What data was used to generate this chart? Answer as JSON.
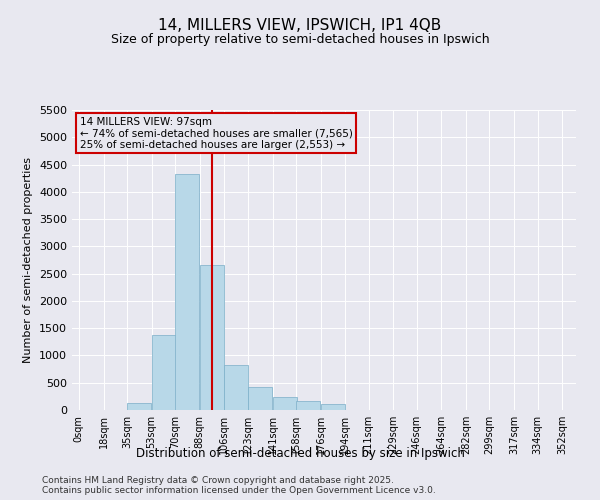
{
  "title": "14, MILLERS VIEW, IPSWICH, IP1 4QB",
  "subtitle": "Size of property relative to semi-detached houses in Ipswich",
  "xlabel": "Distribution of semi-detached houses by size in Ipswich",
  "ylabel": "Number of semi-detached properties",
  "footer_line1": "Contains HM Land Registry data © Crown copyright and database right 2025.",
  "footer_line2": "Contains public sector information licensed under the Open Government Licence v3.0.",
  "property_size": 97,
  "annotation_title": "14 MILLERS VIEW: 97sqm",
  "annotation_line1": "← 74% of semi-detached houses are smaller (7,565)",
  "annotation_line2": "25% of semi-detached houses are larger (2,553) →",
  "bin_starts": [
    0,
    18,
    35,
    53,
    70,
    88,
    106,
    123,
    141,
    158,
    176,
    194,
    211,
    229,
    246,
    264,
    282,
    299,
    317,
    334
  ],
  "bin_labels": [
    "0sqm",
    "18sqm",
    "35sqm",
    "53sqm",
    "70sqm",
    "88sqm",
    "106sqm",
    "123sqm",
    "141sqm",
    "158sqm",
    "176sqm",
    "194sqm",
    "211sqm",
    "229sqm",
    "246sqm",
    "264sqm",
    "282sqm",
    "299sqm",
    "317sqm",
    "334sqm",
    "352sqm"
  ],
  "values": [
    5,
    0,
    120,
    1380,
    4320,
    2660,
    830,
    430,
    230,
    160,
    110,
    0,
    0,
    0,
    0,
    0,
    0,
    0,
    0,
    0
  ],
  "bar_color": "#b8d8e8",
  "bar_edge_color": "#7baec8",
  "vline_color": "#cc0000",
  "bg_color": "#e8e8f0",
  "ylim": [
    0,
    5500
  ],
  "yticks": [
    0,
    500,
    1000,
    1500,
    2000,
    2500,
    3000,
    3500,
    4000,
    4500,
    5000,
    5500
  ],
  "title_fontsize": 11,
  "subtitle_fontsize": 9,
  "xlabel_fontsize": 8.5,
  "ylabel_fontsize": 8,
  "tick_fontsize": 8,
  "xtick_fontsize": 7,
  "footer_fontsize": 6.5,
  "ann_fontsize": 7.5
}
